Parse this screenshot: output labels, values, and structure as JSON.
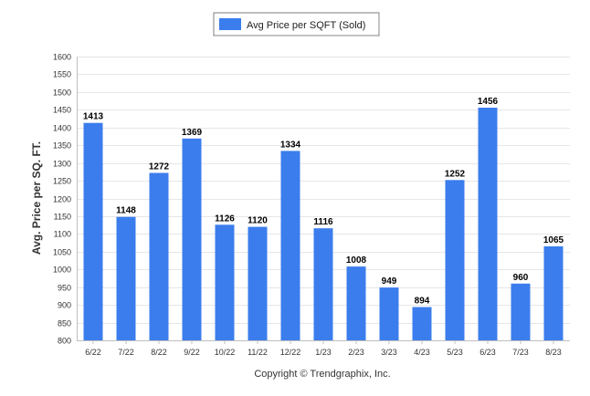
{
  "chart_data": {
    "type": "bar",
    "categories": [
      "6/22",
      "7/22",
      "8/22",
      "9/22",
      "10/22",
      "11/22",
      "12/22",
      "1/23",
      "2/23",
      "3/23",
      "4/23",
      "5/23",
      "6/23",
      "7/23",
      "8/23"
    ],
    "series": [
      {
        "name": "Avg Price per SQFT (Sold)",
        "color": "#3b7ded",
        "values": [
          1413,
          1148,
          1272,
          1369,
          1126,
          1120,
          1334,
          1116,
          1008,
          949,
          894,
          1252,
          1456,
          960,
          1065
        ]
      }
    ],
    "ylabel": "Avg. Price per SQ. FT.",
    "xlabel": "",
    "ylim": [
      800,
      1600
    ],
    "yticks": [
      800,
      850,
      900,
      950,
      1000,
      1050,
      1100,
      1150,
      1200,
      1250,
      1300,
      1350,
      1400,
      1450,
      1500,
      1550,
      1600
    ],
    "grid": true,
    "legend_position": "top-center",
    "data_labels": true
  },
  "footer": {
    "copyright": "Copyright © Trendgraphix, Inc."
  }
}
